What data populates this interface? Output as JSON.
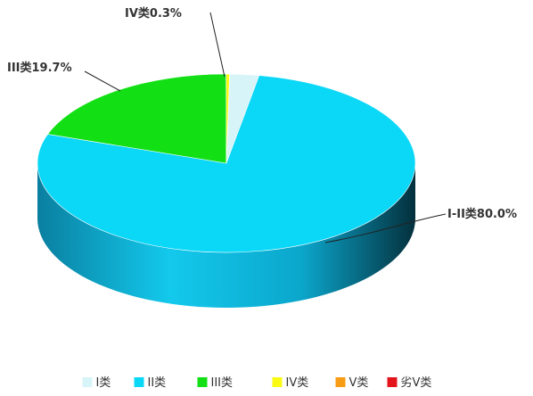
{
  "chart_data": {
    "type": "pie",
    "style": "3d",
    "slices": [
      {
        "name": "I-II类",
        "value": 80.0,
        "label": "I-II类",
        "value_text": "80.0%",
        "color": "#0BD7F7"
      },
      {
        "name": "III类",
        "value": 19.7,
        "label": "III类",
        "value_text": "19.7%",
        "color": "#12E015"
      },
      {
        "name": "IV类",
        "value": 0.3,
        "label": "IV类",
        "value_text": "0.3%",
        "color": "#FAFA14"
      }
    ],
    "legend": {
      "placement": "bottom-center",
      "items": [
        {
          "label": "I类",
          "color": "#D7F4F8"
        },
        {
          "label": "II类",
          "color": "#0BD7F7"
        },
        {
          "label": "III类",
          "color": "#12E015"
        },
        {
          "label": "IV类",
          "color": "#FAFA14"
        },
        {
          "label": "V类",
          "color": "#F79C14"
        },
        {
          "label": "劣V类",
          "color": "#E4141B"
        }
      ]
    }
  },
  "colors": {
    "ii_class": "#0BD7F7",
    "ii_class_side": "#0990AD",
    "iii_class": "#12E015",
    "iv_class": "#FAFA14",
    "i_class": "#D7F4F8"
  }
}
